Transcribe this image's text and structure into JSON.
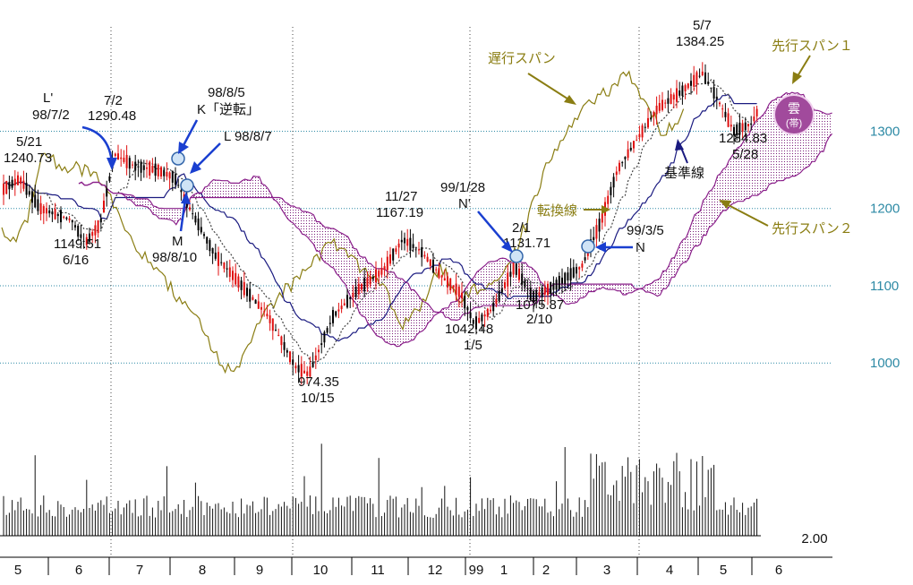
{
  "chart_data": {
    "type": "candlestick-ichimoku",
    "price_axis": {
      "ticks": [
        "1000",
        "1100",
        "1200",
        "1300"
      ],
      "range": [
        955,
        1420
      ]
    },
    "volume_axis": {
      "label": "2.00"
    },
    "x_axis": {
      "month_labels": [
        "5",
        "6",
        "7",
        "8",
        "9",
        "10",
        "11",
        "12",
        "99",
        "1",
        "2",
        "3",
        "4",
        "5",
        "6"
      ],
      "year_marker": "99"
    },
    "series": [
      {
        "name": "遅行スパン",
        "color": "#8a7d12"
      },
      {
        "name": "先行スパン１",
        "color": "#8a1f8a"
      },
      {
        "name": "先行スパン２",
        "color": "#8a1f8a"
      },
      {
        "name": "基準線",
        "color": "#1a1a80"
      },
      {
        "name": "転換線",
        "color": "#444444"
      }
    ],
    "kumo_label": {
      "line1": "雲",
      "line2": "(帯)",
      "color": "#9a3f96"
    },
    "price_labels": [
      {
        "date": "5/21",
        "value": "1240.73"
      },
      {
        "date": "6/16",
        "value": "1149.51"
      },
      {
        "date": "7/2",
        "value": "1290.48"
      },
      {
        "date": "10/15",
        "value": "974.35"
      },
      {
        "date": "11/27",
        "value": "1167.19"
      },
      {
        "date": "1/5",
        "value": "1042.48"
      },
      {
        "date": "2/1",
        "value": "1131.71"
      },
      {
        "date": "2/10",
        "value": "1075.87"
      },
      {
        "date": "5/7",
        "value": "1384.25"
      },
      {
        "date": "5/28",
        "value": "1284.83"
      }
    ],
    "signals": [
      {
        "line1": "L'",
        "line2": "98/7/2"
      },
      {
        "line1": "98/8/5",
        "line2": "K「逆転」"
      },
      {
        "line1": "L 98/8/7"
      },
      {
        "line1": "M",
        "line2": "98/8/10"
      },
      {
        "line1": "99/1/28",
        "line2": "N'"
      },
      {
        "line1": "99/3/5",
        "line2": "N"
      }
    ]
  }
}
